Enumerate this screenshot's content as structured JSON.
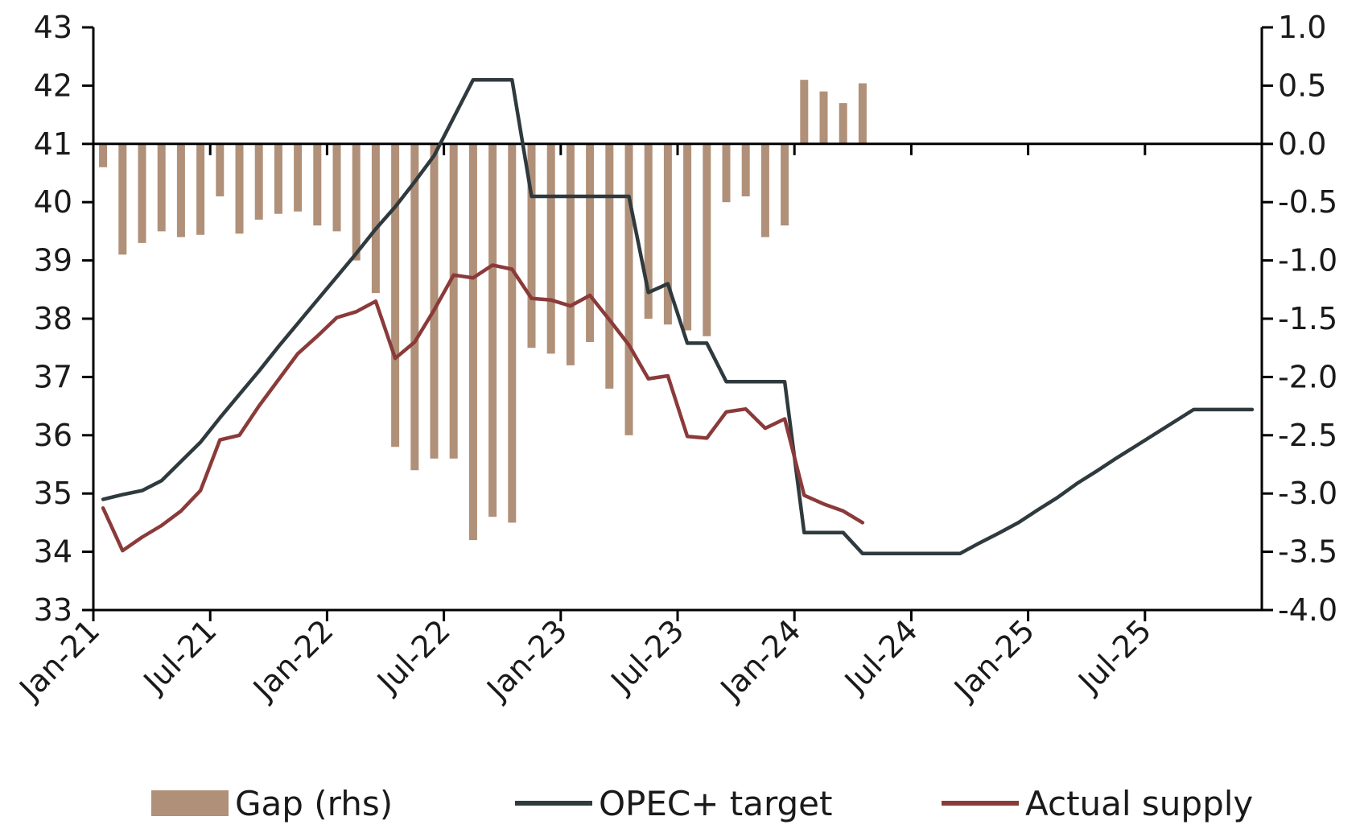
{
  "chart_data": {
    "type": "bar+line",
    "title": "",
    "x_tick_labels": [
      "Jan-21",
      "Jul-21",
      "Jan-22",
      "Jul-22",
      "Jan-23",
      "Jul-23",
      "Jan-24",
      "Jul-24",
      "Jan-25",
      "Jul-25"
    ],
    "x_range": [
      "2021-01",
      "2025-12"
    ],
    "y_left": {
      "min": 33,
      "max": 43,
      "ticks": [
        33,
        34,
        35,
        36,
        37,
        38,
        39,
        40,
        41,
        42,
        43
      ]
    },
    "y_right": {
      "min": -4.0,
      "max": 1.0,
      "ticks": [
        "1.0",
        "0.5",
        "0.0",
        "-0.5",
        "-1.0",
        "-1.5",
        "-2.0",
        "-2.5",
        "-3.0",
        "-3.5",
        "-4.0"
      ]
    },
    "grid": false,
    "legend_position": "bottom",
    "series": [
      {
        "name": "Gap (rhs)",
        "kind": "bar",
        "axis": "right",
        "color": "#b09078",
        "points": [
          [
            "2021-01",
            -0.2
          ],
          [
            "2021-02",
            -0.95
          ],
          [
            "2021-03",
            -0.85
          ],
          [
            "2021-04",
            -0.75
          ],
          [
            "2021-05",
            -0.8
          ],
          [
            "2021-06",
            -0.78
          ],
          [
            "2021-07",
            -0.45
          ],
          [
            "2021-08",
            -0.77
          ],
          [
            "2021-09",
            -0.65
          ],
          [
            "2021-10",
            -0.6
          ],
          [
            "2021-11",
            -0.58
          ],
          [
            "2021-12",
            -0.7
          ],
          [
            "2022-01",
            -0.75
          ],
          [
            "2022-02",
            -1.0
          ],
          [
            "2022-03",
            -1.28
          ],
          [
            "2022-04",
            -2.6
          ],
          [
            "2022-05",
            -2.8
          ],
          [
            "2022-06",
            -2.7
          ],
          [
            "2022-07",
            -2.7
          ],
          [
            "2022-08",
            -3.4
          ],
          [
            "2022-09",
            -3.2
          ],
          [
            "2022-10",
            -3.25
          ],
          [
            "2022-11",
            -1.75
          ],
          [
            "2022-12",
            -1.8
          ],
          [
            "2023-01",
            -1.9
          ],
          [
            "2023-02",
            -1.7
          ],
          [
            "2023-03",
            -2.1
          ],
          [
            "2023-04",
            -2.5
          ],
          [
            "2023-05",
            -1.5
          ],
          [
            "2023-06",
            -1.55
          ],
          [
            "2023-07",
            -1.6
          ],
          [
            "2023-08",
            -1.65
          ],
          [
            "2023-09",
            -0.5
          ],
          [
            "2023-10",
            -0.45
          ],
          [
            "2023-11",
            -0.8
          ],
          [
            "2023-12",
            -0.7
          ],
          [
            "2024-01",
            0.55
          ],
          [
            "2024-02",
            0.45
          ],
          [
            "2024-03",
            0.35
          ],
          [
            "2024-04",
            0.52
          ]
        ]
      },
      {
        "name": "OPEC+ target",
        "kind": "line",
        "axis": "left",
        "color": "#2f3a3e",
        "points": [
          [
            "2021-01",
            34.9
          ],
          [
            "2021-02",
            34.98
          ],
          [
            "2021-03",
            35.05
          ],
          [
            "2021-04",
            35.22
          ],
          [
            "2021-05",
            35.55
          ],
          [
            "2021-06",
            35.88
          ],
          [
            "2021-07",
            36.3
          ],
          [
            "2021-08",
            36.7
          ],
          [
            "2021-09",
            37.1
          ],
          [
            "2021-10",
            37.52
          ],
          [
            "2021-11",
            37.92
          ],
          [
            "2021-12",
            38.32
          ],
          [
            "2022-01",
            38.72
          ],
          [
            "2022-02",
            39.12
          ],
          [
            "2022-03",
            39.54
          ],
          [
            "2022-04",
            39.92
          ],
          [
            "2022-05",
            40.35
          ],
          [
            "2022-06",
            40.8
          ],
          [
            "2022-07",
            41.45
          ],
          [
            "2022-08",
            42.1
          ],
          [
            "2022-09",
            42.1
          ],
          [
            "2022-10",
            42.1
          ],
          [
            "2022-11",
            40.1
          ],
          [
            "2022-12",
            40.1
          ],
          [
            "2023-01",
            40.1
          ],
          [
            "2023-02",
            40.1
          ],
          [
            "2023-03",
            40.1
          ],
          [
            "2023-04",
            40.1
          ],
          [
            "2023-05",
            38.45
          ],
          [
            "2023-06",
            38.6
          ],
          [
            "2023-07",
            37.58
          ],
          [
            "2023-08",
            37.58
          ],
          [
            "2023-09",
            36.92
          ],
          [
            "2023-10",
            36.92
          ],
          [
            "2023-11",
            36.92
          ],
          [
            "2023-12",
            36.92
          ],
          [
            "2024-01",
            34.33
          ],
          [
            "2024-02",
            34.33
          ],
          [
            "2024-03",
            34.33
          ],
          [
            "2024-04",
            33.97
          ],
          [
            "2024-05",
            33.97
          ],
          [
            "2024-06",
            33.97
          ],
          [
            "2024-07",
            33.97
          ],
          [
            "2024-08",
            33.97
          ],
          [
            "2024-09",
            33.97
          ],
          [
            "2024-10",
            34.15
          ],
          [
            "2024-11",
            34.32
          ],
          [
            "2024-12",
            34.5
          ],
          [
            "2025-01",
            34.72
          ],
          [
            "2025-02",
            34.93
          ],
          [
            "2025-03",
            35.17
          ],
          [
            "2025-04",
            35.38
          ],
          [
            "2025-05",
            35.6
          ],
          [
            "2025-06",
            35.81
          ],
          [
            "2025-07",
            36.02
          ],
          [
            "2025-08",
            36.23
          ],
          [
            "2025-09",
            36.44
          ],
          [
            "2025-10",
            36.44
          ],
          [
            "2025-11",
            36.44
          ],
          [
            "2025-12",
            36.44
          ]
        ]
      },
      {
        "name": "Actual supply",
        "kind": "line",
        "axis": "left",
        "color": "#8b3a3a",
        "points": [
          [
            "2021-01",
            34.75
          ],
          [
            "2021-02",
            34.02
          ],
          [
            "2021-03",
            34.25
          ],
          [
            "2021-04",
            34.45
          ],
          [
            "2021-05",
            34.7
          ],
          [
            "2021-06",
            35.05
          ],
          [
            "2021-07",
            35.92
          ],
          [
            "2021-08",
            36.0
          ],
          [
            "2021-09",
            36.5
          ],
          [
            "2021-10",
            36.95
          ],
          [
            "2021-11",
            37.4
          ],
          [
            "2021-12",
            37.7
          ],
          [
            "2022-01",
            38.02
          ],
          [
            "2022-02",
            38.12
          ],
          [
            "2022-03",
            38.3
          ],
          [
            "2022-04",
            37.32
          ],
          [
            "2022-05",
            37.6
          ],
          [
            "2022-06",
            38.15
          ],
          [
            "2022-07",
            38.75
          ],
          [
            "2022-08",
            38.7
          ],
          [
            "2022-09",
            38.92
          ],
          [
            "2022-10",
            38.85
          ],
          [
            "2022-11",
            38.35
          ],
          [
            "2022-12",
            38.32
          ],
          [
            "2023-01",
            38.22
          ],
          [
            "2023-02",
            38.4
          ],
          [
            "2023-03",
            37.98
          ],
          [
            "2023-04",
            37.55
          ],
          [
            "2023-05",
            36.97
          ],
          [
            "2023-06",
            37.02
          ],
          [
            "2023-07",
            35.98
          ],
          [
            "2023-08",
            35.95
          ],
          [
            "2023-09",
            36.4
          ],
          [
            "2023-10",
            36.45
          ],
          [
            "2023-11",
            36.12
          ],
          [
            "2023-12",
            36.28
          ],
          [
            "2024-01",
            34.97
          ],
          [
            "2024-02",
            34.82
          ],
          [
            "2024-03",
            34.7
          ],
          [
            "2024-04",
            34.5
          ]
        ]
      }
    ]
  }
}
